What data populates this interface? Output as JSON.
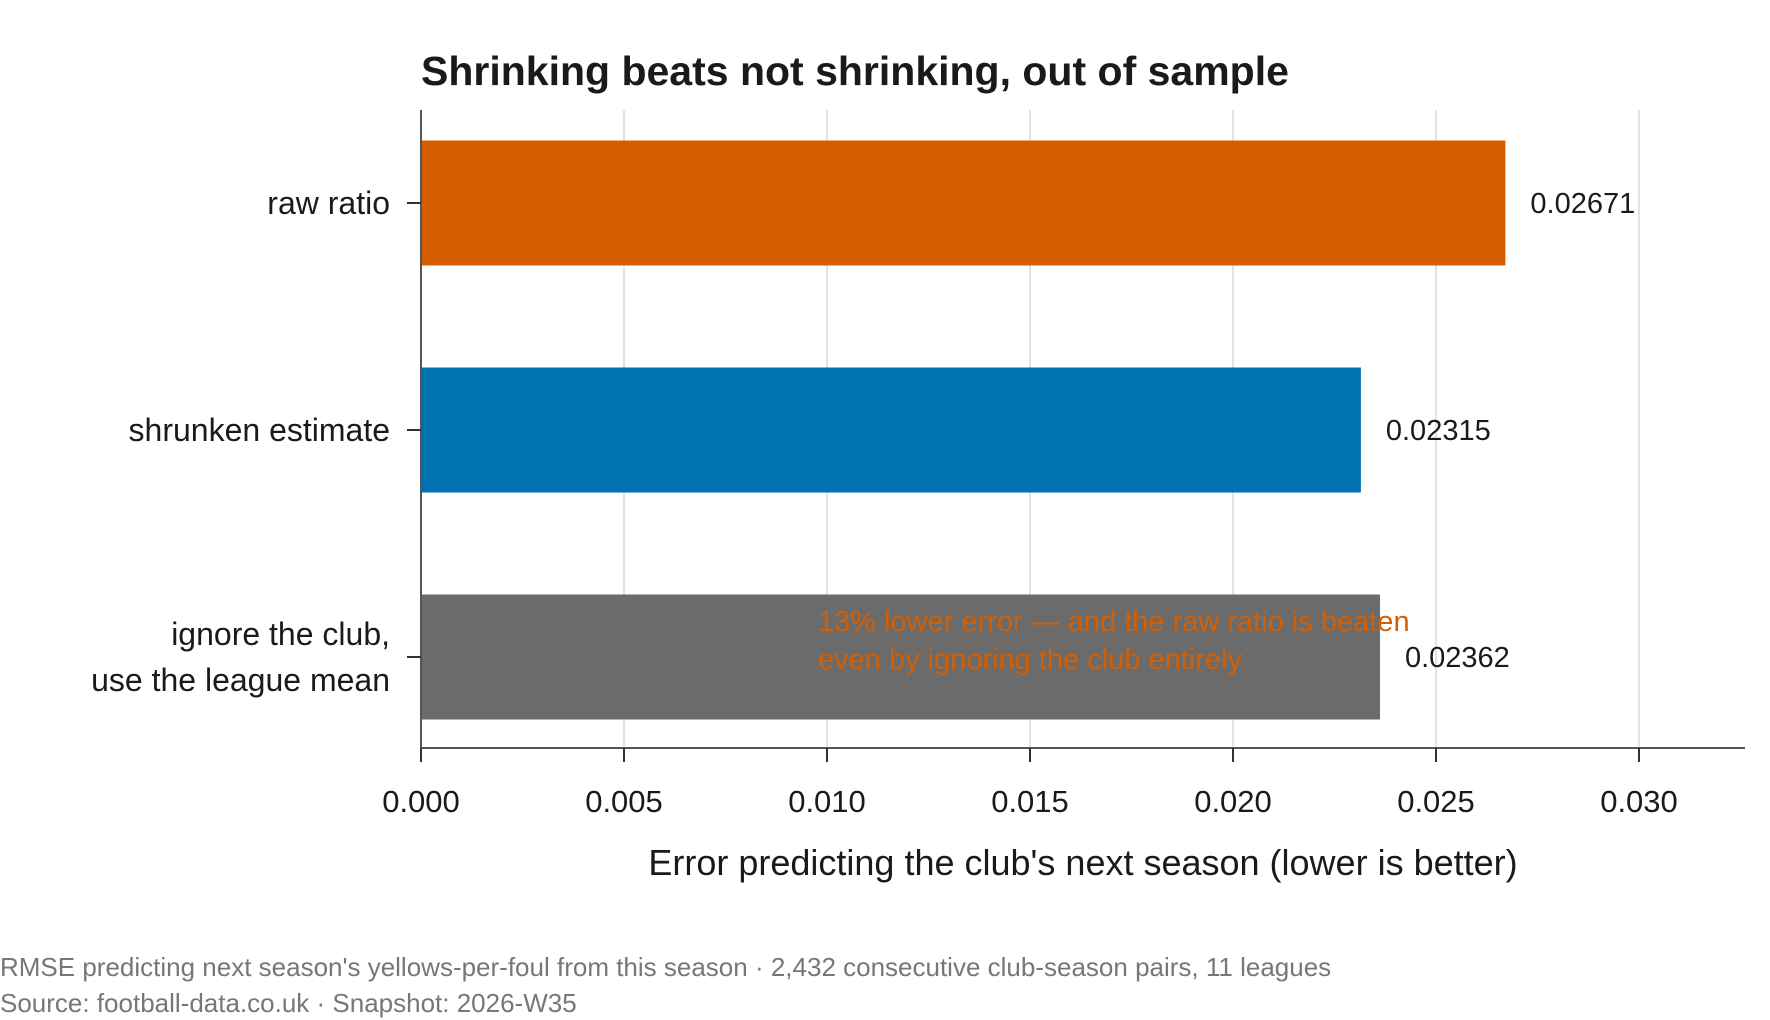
{
  "chart_data": {
    "type": "bar",
    "orientation": "horizontal",
    "title": "Shrinking beats not shrinking, out of sample",
    "xlabel": "Error predicting the club's next season (lower is better)",
    "ylabel": "",
    "xlim": [
      0,
      0.0326
    ],
    "xticks": [
      0.0,
      0.005,
      0.01,
      0.015,
      0.02,
      0.025,
      0.03
    ],
    "xtick_labels": [
      "0.000",
      "0.005",
      "0.010",
      "0.015",
      "0.020",
      "0.025",
      "0.030"
    ],
    "grid": "vertical",
    "categories": [
      [
        "raw ratio"
      ],
      [
        "shrunken estimate"
      ],
      [
        "ignore the club,",
        "use the league mean"
      ]
    ],
    "values": [
      0.02671,
      0.02315,
      0.02362
    ],
    "value_labels": [
      "0.02671",
      "0.02315",
      "0.02362"
    ],
    "colors": [
      "#d55e00",
      "#0072b2",
      "#6b6b6b"
    ],
    "annotation": {
      "lines": [
        "13% lower error — and the raw ratio is beaten",
        "even by ignoring the club entirely"
      ],
      "color": "#d55e00"
    }
  },
  "footer": {
    "line1": "RMSE predicting next season's yellows-per-foul from this season  ·  2,432 consecutive club-season pairs, 11 leagues",
    "line2": "Source: football-data.co.uk  ·  Snapshot: 2026-W35"
  }
}
